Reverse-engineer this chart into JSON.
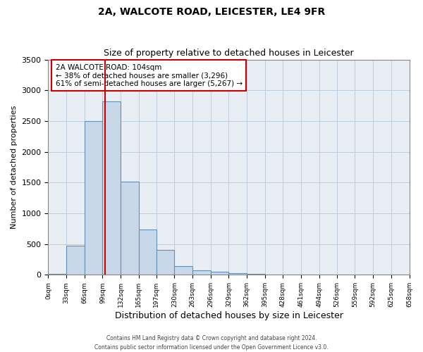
{
  "title": "2A, WALCOTE ROAD, LEICESTER, LE4 9FR",
  "subtitle": "Size of property relative to detached houses in Leicester",
  "xlabel": "Distribution of detached houses by size in Leicester",
  "ylabel": "Number of detached properties",
  "bin_edges": [
    0,
    33,
    66,
    99,
    132,
    165,
    197,
    230,
    263,
    296,
    329,
    362,
    395,
    428,
    461,
    494,
    526,
    559,
    592,
    625,
    658
  ],
  "bin_labels": [
    "0sqm",
    "33sqm",
    "66sqm",
    "99sqm",
    "132sqm",
    "165sqm",
    "197sqm",
    "230sqm",
    "263sqm",
    "296sqm",
    "329sqm",
    "362sqm",
    "395sqm",
    "428sqm",
    "461sqm",
    "494sqm",
    "526sqm",
    "559sqm",
    "592sqm",
    "625sqm",
    "658sqm"
  ],
  "bar_heights": [
    20,
    475,
    2500,
    2820,
    1510,
    740,
    400,
    145,
    75,
    55,
    30,
    15,
    5,
    2,
    1,
    0,
    0,
    0,
    0,
    0
  ],
  "bar_color": "#c8d8e8",
  "bar_edge_color": "#6090b8",
  "property_sqm": 104,
  "vline_color": "#cc0000",
  "ylim": [
    0,
    3500
  ],
  "annotation_line1": "2A WALCOTE ROAD: 104sqm",
  "annotation_line2": "← 38% of detached houses are smaller (3,296)",
  "annotation_line3": "61% of semi-detached houses are larger (5,267) →",
  "annotation_box_edgecolor": "#cc0000",
  "footer_line1": "Contains HM Land Registry data © Crown copyright and database right 2024.",
  "footer_line2": "Contains public sector information licensed under the Open Government Licence v3.0.",
  "background_color": "#e8eef4",
  "grid_color": "#b8c8d8",
  "title_fontsize": 10,
  "subtitle_fontsize": 9,
  "ylabel_fontsize": 8,
  "xlabel_fontsize": 9
}
